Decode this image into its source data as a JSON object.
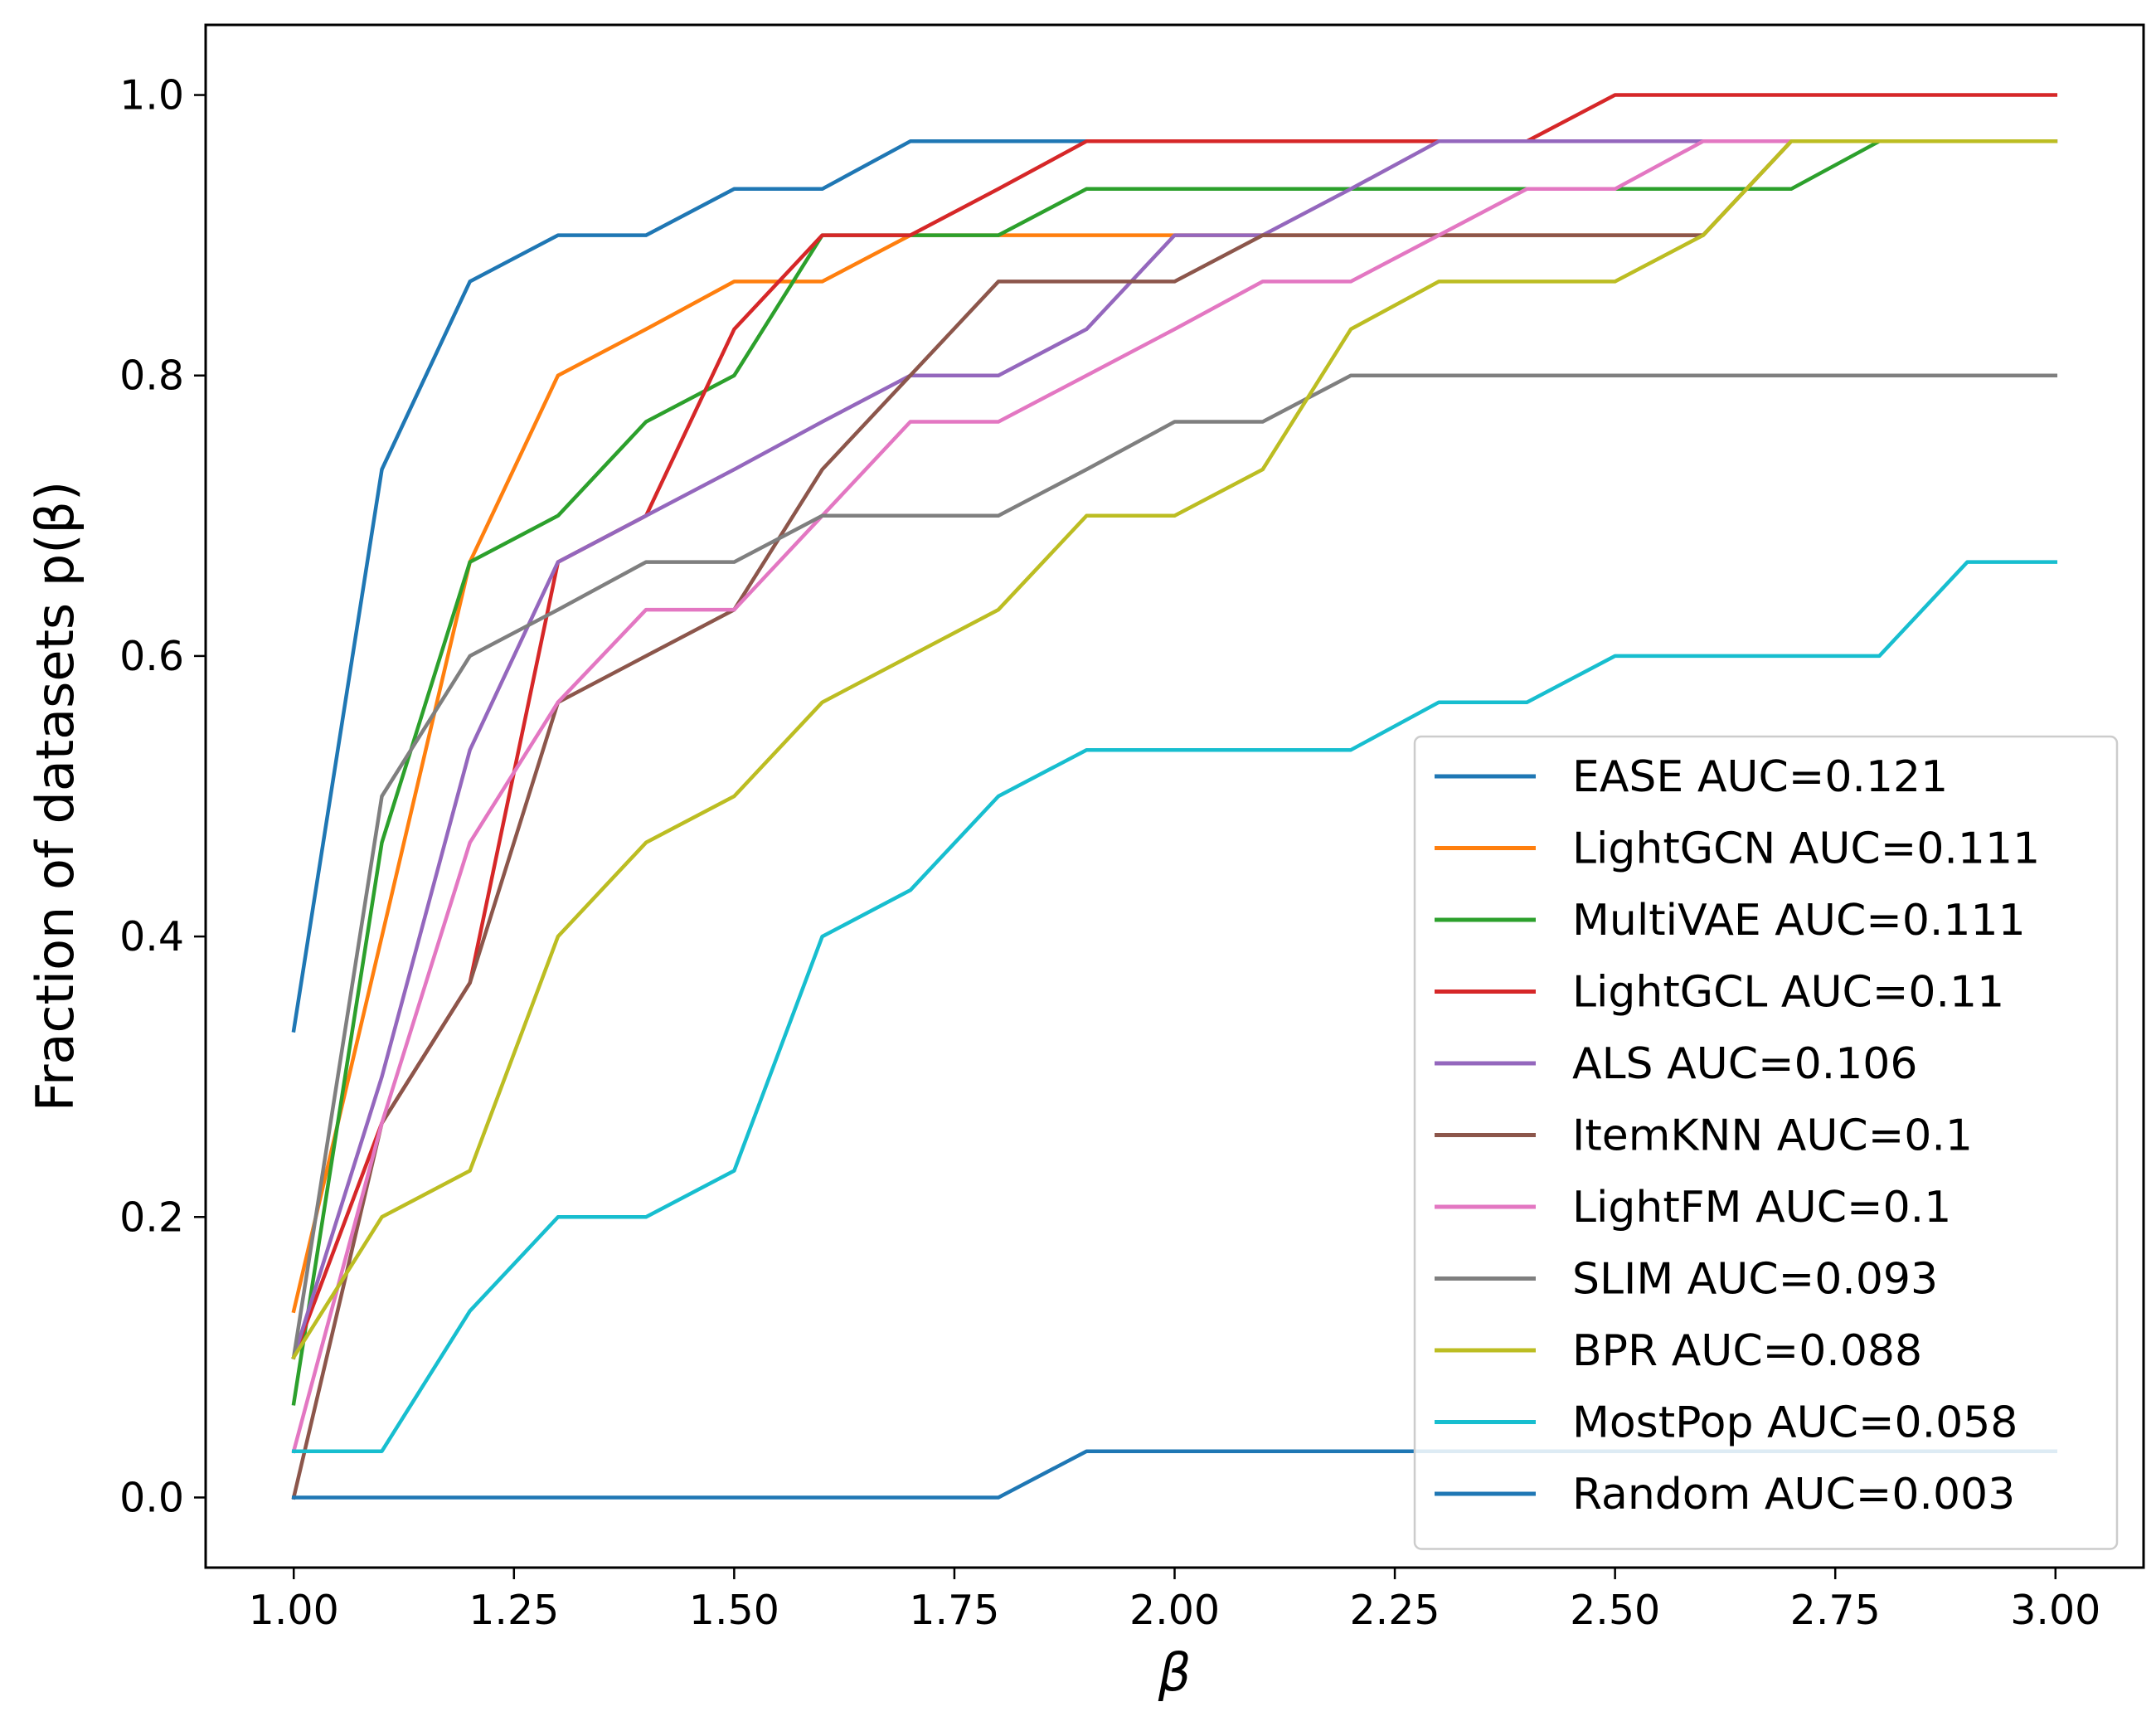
{
  "chart_data": {
    "type": "line",
    "xlabel": "β",
    "ylabel": "Fraction of datasets p(β)",
    "xlim": [
      0.9,
      3.1
    ],
    "ylim": [
      -0.05,
      1.05
    ],
    "xticks": [
      1.0,
      1.25,
      1.5,
      1.75,
      2.0,
      2.25,
      2.5,
      2.75,
      3.0
    ],
    "xtick_labels": [
      "1.00",
      "1.25",
      "1.50",
      "1.75",
      "2.00",
      "2.25",
      "2.50",
      "2.75",
      "3.00"
    ],
    "yticks": [
      0.0,
      0.2,
      0.4,
      0.6,
      0.8,
      1.0
    ],
    "ytick_labels": [
      "0.0",
      "0.2",
      "0.4",
      "0.6",
      "0.8",
      "1.0"
    ],
    "grid": false,
    "legend_position": "lower-right",
    "x": [
      1.0,
      1.1,
      1.2,
      1.3,
      1.4,
      1.5,
      1.6,
      1.7,
      1.8,
      1.9,
      2.0,
      2.1,
      2.2,
      2.3,
      2.4,
      2.5,
      2.6,
      2.7,
      2.8,
      2.9,
      3.0
    ],
    "series": [
      {
        "name": "EASE AUC=0.121",
        "color": "#1f77b4",
        "values": [
          0.333,
          0.733,
          0.867,
          0.9,
          0.9,
          0.933,
          0.933,
          0.967,
          0.967,
          0.967,
          0.967,
          0.967,
          0.967,
          0.967,
          0.967,
          0.967,
          0.967,
          0.967,
          0.967,
          0.967,
          0.967
        ]
      },
      {
        "name": "LightGCN AUC=0.111",
        "color": "#ff7f0e",
        "values": [
          0.133,
          0.4,
          0.667,
          0.8,
          0.833,
          0.867,
          0.867,
          0.9,
          0.9,
          0.9,
          0.9,
          0.9,
          0.9,
          0.9,
          0.9,
          0.9,
          0.9,
          0.967,
          0.967,
          0.967,
          0.967
        ]
      },
      {
        "name": "MultiVAE AUC=0.111",
        "color": "#2ca02c",
        "values": [
          0.067,
          0.467,
          0.667,
          0.7,
          0.767,
          0.8,
          0.9,
          0.9,
          0.9,
          0.933,
          0.933,
          0.933,
          0.933,
          0.933,
          0.933,
          0.933,
          0.933,
          0.933,
          0.967,
          0.967,
          0.967
        ]
      },
      {
        "name": "LightGCL AUC=0.11",
        "color": "#d62728",
        "values": [
          0.1,
          0.267,
          0.367,
          0.667,
          0.7,
          0.833,
          0.9,
          0.9,
          0.933,
          0.967,
          0.967,
          0.967,
          0.967,
          0.967,
          0.967,
          1.0,
          1.0,
          1.0,
          1.0,
          1.0,
          1.0
        ]
      },
      {
        "name": "ALS AUC=0.106",
        "color": "#9467bd",
        "values": [
          0.1,
          0.3,
          0.533,
          0.667,
          0.7,
          0.733,
          0.767,
          0.8,
          0.8,
          0.833,
          0.9,
          0.9,
          0.933,
          0.967,
          0.967,
          0.967,
          0.967,
          0.967,
          0.967,
          0.967,
          0.967
        ]
      },
      {
        "name": "ItemKNN AUC=0.1",
        "color": "#8c564b",
        "values": [
          0.0,
          0.267,
          0.367,
          0.567,
          0.6,
          0.633,
          0.733,
          0.8,
          0.867,
          0.867,
          0.867,
          0.9,
          0.9,
          0.9,
          0.9,
          0.9,
          0.9,
          0.967,
          0.967,
          0.967,
          0.967
        ]
      },
      {
        "name": "LightFM AUC=0.1",
        "color": "#e377c2",
        "values": [
          0.033,
          0.267,
          0.467,
          0.567,
          0.633,
          0.633,
          0.7,
          0.767,
          0.767,
          0.8,
          0.833,
          0.867,
          0.867,
          0.9,
          0.933,
          0.933,
          0.967,
          0.967,
          0.967,
          0.967,
          0.967
        ]
      },
      {
        "name": "SLIM AUC=0.093",
        "color": "#7f7f7f",
        "values": [
          0.1,
          0.5,
          0.6,
          0.633,
          0.667,
          0.667,
          0.7,
          0.7,
          0.7,
          0.733,
          0.767,
          0.767,
          0.8,
          0.8,
          0.8,
          0.8,
          0.8,
          0.8,
          0.8,
          0.8,
          0.8
        ]
      },
      {
        "name": "BPR AUC=0.088",
        "color": "#bcbd22",
        "values": [
          0.1,
          0.2,
          0.233,
          0.4,
          0.467,
          0.5,
          0.567,
          0.6,
          0.633,
          0.7,
          0.7,
          0.733,
          0.833,
          0.867,
          0.867,
          0.867,
          0.9,
          0.967,
          0.967,
          0.967,
          0.967
        ]
      },
      {
        "name": "MostPop AUC=0.058",
        "color": "#17becf",
        "values": [
          0.033,
          0.033,
          0.133,
          0.2,
          0.2,
          0.233,
          0.4,
          0.433,
          0.5,
          0.533,
          0.533,
          0.533,
          0.533,
          0.567,
          0.567,
          0.6,
          0.6,
          0.6,
          0.6,
          0.667,
          0.667
        ]
      },
      {
        "name": "Random AUC=0.003",
        "color": "#1f77b4",
        "values": [
          0.0,
          0.0,
          0.0,
          0.0,
          0.0,
          0.0,
          0.0,
          0.0,
          0.0,
          0.033,
          0.033,
          0.033,
          0.033,
          0.033,
          0.033,
          0.033,
          0.033,
          0.033,
          0.033,
          0.033,
          0.033
        ]
      }
    ]
  }
}
